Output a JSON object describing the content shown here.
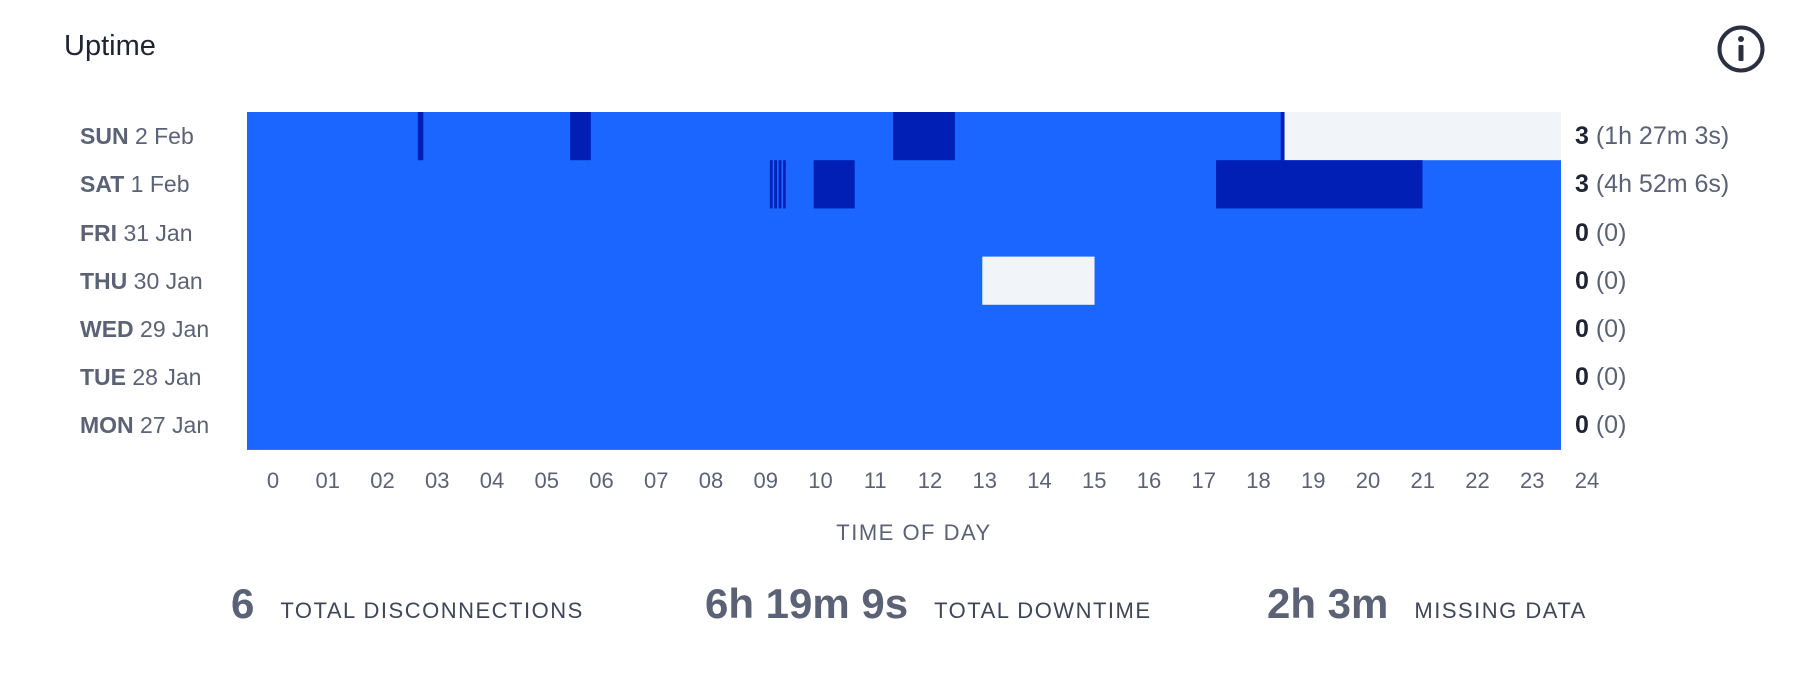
{
  "card": {
    "title": "Uptime",
    "info_icon": "info-circle-icon"
  },
  "colors": {
    "up": "#1a66ff",
    "down": "#011fb4",
    "missing": "#f1f4f9"
  },
  "chart_data": {
    "type": "heatmap",
    "xlabel": "TIME OF DAY",
    "xlim": [
      0,
      24
    ],
    "ticks": [
      "0",
      "01",
      "02",
      "03",
      "04",
      "05",
      "06",
      "07",
      "08",
      "09",
      "10",
      "11",
      "12",
      "13",
      "14",
      "15",
      "16",
      "17",
      "18",
      "19",
      "20",
      "21",
      "22",
      "23",
      "24"
    ],
    "rows": [
      {
        "day": "SUN",
        "date": "2 Feb",
        "count": "3",
        "duration": "(1h 27m 3s)",
        "down": [
          [
            3.12,
            3.22
          ],
          [
            5.9,
            6.28
          ],
          [
            11.8,
            12.93
          ],
          [
            18.88,
            18.95
          ]
        ],
        "missing": [
          [
            18.95,
            24
          ]
        ]
      },
      {
        "day": "SAT",
        "date": "1 Feb",
        "count": "3",
        "duration": "(4h 52m 6s)",
        "down": [
          [
            9.55,
            9.6
          ],
          [
            9.63,
            9.68
          ],
          [
            9.71,
            9.76
          ],
          [
            9.79,
            9.84
          ],
          [
            10.35,
            11.1
          ],
          [
            17.7,
            21.47
          ]
        ],
        "missing": []
      },
      {
        "day": "FRI",
        "date": "31 Jan",
        "count": "0",
        "duration": "(0)",
        "down": [],
        "missing": []
      },
      {
        "day": "THU",
        "date": "30 Jan",
        "count": "0",
        "duration": "(0)",
        "down": [],
        "missing": [
          [
            13.43,
            15.48
          ]
        ]
      },
      {
        "day": "WED",
        "date": "29 Jan",
        "count": "0",
        "duration": "(0)",
        "down": [],
        "missing": []
      },
      {
        "day": "TUE",
        "date": "28 Jan",
        "count": "0",
        "duration": "(0)",
        "down": [],
        "missing": []
      },
      {
        "day": "MON",
        "date": "27 Jan",
        "count": "0",
        "duration": "(0)",
        "down": [],
        "missing": []
      }
    ]
  },
  "summary": {
    "disconnections": {
      "value": "6",
      "label": "TOTAL DISCONNECTIONS"
    },
    "downtime": {
      "value": "6h 19m 9s",
      "label": "TOTAL DOWNTIME"
    },
    "missing": {
      "value": "2h 3m",
      "label": "MISSING DATA"
    }
  }
}
